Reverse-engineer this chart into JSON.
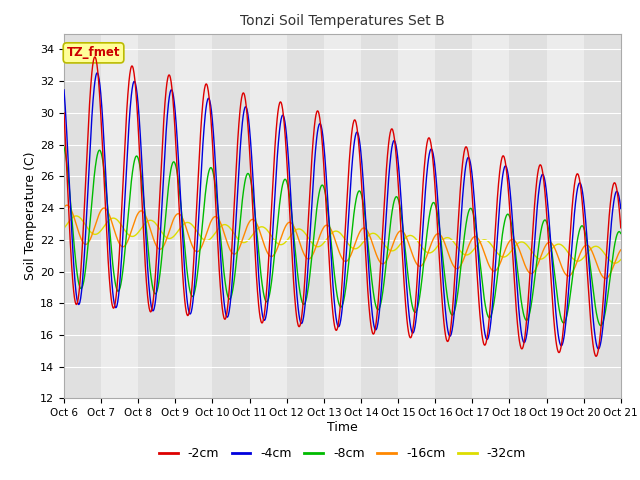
{
  "title": "Tonzi Soil Temperatures Set B",
  "xlabel": "Time",
  "ylabel": "Soil Temperature (C)",
  "ylim": [
    12,
    35
  ],
  "xlim": [
    0,
    360
  ],
  "tick_labels": [
    "Oct 6",
    "Oct 7",
    "Oct 8",
    "Oct 9",
    "Oct 10",
    "Oct 11",
    "Oct 12",
    "Oct 13",
    "Oct 14",
    "Oct 15",
    "Oct 16",
    "Oct 17",
    "Oct 18",
    "Oct 19",
    "Oct 20",
    "Oct 21"
  ],
  "legend_labels": [
    "-2cm",
    "-4cm",
    "-8cm",
    "-16cm",
    "-32cm"
  ],
  "line_colors": [
    "#dd0000",
    "#0000dd",
    "#00bb00",
    "#ff8800",
    "#dddd00"
  ],
  "bg_color": "#ffffff",
  "ax_bg_color": "#e8e8e8",
  "band_colors": [
    "#e0e0e0",
    "#ececec"
  ],
  "annotation_text": "TZ_fmet",
  "annotation_bg": "#ffff99",
  "annotation_border": "#bbbb00",
  "annotation_fg": "#cc0000",
  "n_points": 1440,
  "figsize": [
    6.4,
    4.8
  ],
  "dpi": 100
}
